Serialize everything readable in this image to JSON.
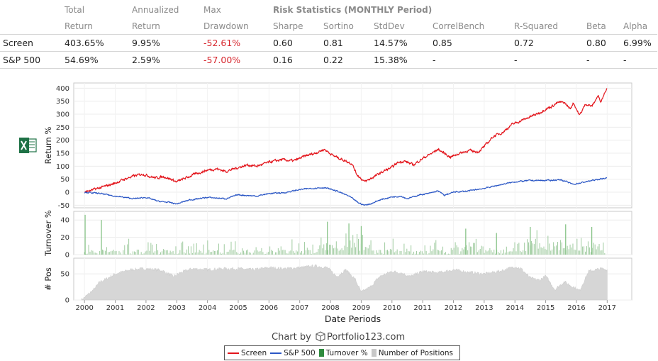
{
  "stats_table": {
    "header1": [
      "Total",
      "Annualized",
      "Max",
      "Risk Statistics (MONTHLY Period)"
    ],
    "header2": [
      "Return",
      "Return",
      "Drawdown",
      "Sharpe",
      "Sortino",
      "StdDev",
      "CorrelBench",
      "R-Squared",
      "Beta",
      "Alpha"
    ],
    "rows": [
      {
        "name": "Screen",
        "total": "403.65%",
        "annualized": "9.95%",
        "drawdown": "-52.61%",
        "sharpe": "0.60",
        "sortino": "0.81",
        "stddev": "14.57%",
        "correl": "0.85",
        "rsq": "0.72",
        "beta": "0.80",
        "alpha": "6.99%"
      },
      {
        "name": "S&P 500",
        "total": "54.69%",
        "annualized": "2.59%",
        "drawdown": "-57.00%",
        "sharpe": "0.16",
        "sortino": "0.22",
        "stddev": "15.38%",
        "correl": "-",
        "rsq": "-",
        "beta": "-",
        "alpha": "-"
      }
    ]
  },
  "chart_data": [
    {
      "type": "line",
      "ylabel": "Return %",
      "ylim": [
        -60,
        420
      ],
      "yticks": [
        400,
        350,
        300,
        250,
        200,
        150,
        100,
        50,
        0,
        -50
      ],
      "colors": {
        "Screen": "#e3141b",
        "S&P 500": "#2b57c5"
      },
      "series": [
        {
          "name": "Screen",
          "x": [
            2000.0,
            2000.3,
            2000.6,
            2001.0,
            2001.3,
            2001.6,
            2001.9,
            2002.3,
            2002.6,
            2002.9,
            2003.0,
            2003.3,
            2003.6,
            2004.0,
            2004.3,
            2004.6,
            2005.0,
            2005.3,
            2005.6,
            2006.0,
            2006.4,
            2006.8,
            2007.2,
            2007.5,
            2007.8,
            2008.1,
            2008.4,
            2008.7,
            2008.85,
            2009.1,
            2009.2,
            2009.5,
            2009.8,
            2010.0,
            2010.2,
            2010.4,
            2010.7,
            2011.0,
            2011.3,
            2011.5,
            2011.7,
            2011.9,
            2012.2,
            2012.5,
            2012.8,
            2013.0,
            2013.3,
            2013.6,
            2013.9,
            2014.2,
            2014.5,
            2014.8,
            2015.0,
            2015.2,
            2015.4,
            2015.6,
            2015.8,
            2015.9,
            2016.1,
            2016.3,
            2016.5,
            2016.7,
            2016.8,
            2017.0
          ],
          "y": [
            0,
            10,
            20,
            35,
            50,
            62,
            70,
            55,
            60,
            45,
            40,
            55,
            70,
            85,
            90,
            80,
            95,
            105,
            100,
            115,
            125,
            120,
            140,
            150,
            165,
            140,
            125,
            110,
            70,
            40,
            45,
            65,
            85,
            95,
            115,
            120,
            105,
            130,
            150,
            165,
            150,
            135,
            150,
            160,
            155,
            175,
            215,
            230,
            260,
            275,
            290,
            305,
            320,
            330,
            345,
            345,
            320,
            345,
            295,
            340,
            330,
            370,
            350,
            405
          ]
        },
        {
          "name": "S&P 500",
          "x": [
            2000.0,
            2000.5,
            2001.0,
            2001.6,
            2002.0,
            2002.4,
            2002.8,
            2003.0,
            2003.4,
            2004.0,
            2004.6,
            2005.0,
            2005.6,
            2006.0,
            2006.5,
            2007.0,
            2007.4,
            2007.8,
            2008.2,
            2008.6,
            2008.9,
            2009.1,
            2009.3,
            2009.6,
            2010.0,
            2010.3,
            2010.5,
            2010.9,
            2011.2,
            2011.5,
            2011.7,
            2012.0,
            2012.5,
            2013.0,
            2013.5,
            2014.0,
            2014.5,
            2015.0,
            2015.5,
            2015.9,
            2016.1,
            2016.5,
            2017.0
          ],
          "y": [
            0,
            -5,
            -15,
            -25,
            -20,
            -35,
            -40,
            -45,
            -30,
            -20,
            -25,
            -10,
            -15,
            -5,
            -2,
            10,
            15,
            18,
            5,
            -15,
            -40,
            -50,
            -45,
            -30,
            -18,
            -15,
            -25,
            -10,
            -5,
            5,
            -12,
            0,
            5,
            15,
            28,
            40,
            45,
            45,
            48,
            30,
            35,
            45,
            55
          ]
        }
      ],
      "x_domain": [
        1999.65,
        2017.8
      ]
    },
    {
      "type": "bar",
      "ylabel": "Turnover %",
      "ylim": [
        0,
        50
      ],
      "yticks": [
        40,
        20,
        0
      ],
      "color": "#9fcb9f",
      "series_name": "Turnover %",
      "note_spikes": {
        "x": [
          2000.02,
          2000.55,
          2007.9,
          2008.6,
          2009.0,
          2012.4,
          2013.4,
          2014.5,
          2015.65,
          2016.5
        ],
        "y": [
          46,
          40,
          38,
          36,
          33,
          30,
          25,
          32,
          35,
          32
        ]
      }
    },
    {
      "type": "area",
      "ylabel": "# Pos",
      "ylim": [
        0,
        80
      ],
      "yticks": [
        50,
        0
      ],
      "color": "#d6d6d6",
      "series_name": "Number of Positions",
      "x": [
        1999.9,
        2000.0,
        2000.3,
        2000.5,
        2000.7,
        2001.0,
        2001.5,
        2002.0,
        2002.5,
        2002.9,
        2003.1,
        2003.5,
        2004.0,
        2004.5,
        2005.0,
        2005.5,
        2006.0,
        2006.5,
        2007.0,
        2007.5,
        2007.9,
        2008.2,
        2008.5,
        2008.8,
        2009.0,
        2009.3,
        2009.6,
        2010.0,
        2010.3,
        2010.6,
        2011.0,
        2011.5,
        2012.0,
        2012.5,
        2013.0,
        2013.5,
        2014.0,
        2014.2,
        2014.5,
        2014.8,
        2015.0,
        2015.3,
        2015.6,
        2015.9,
        2016.1,
        2016.4,
        2016.8,
        2017.0
      ],
      "y": [
        0,
        5,
        20,
        35,
        40,
        50,
        58,
        60,
        57,
        45,
        52,
        60,
        58,
        60,
        60,
        58,
        62,
        60,
        62,
        65,
        62,
        45,
        58,
        40,
        15,
        25,
        45,
        55,
        52,
        45,
        55,
        52,
        58,
        53,
        50,
        55,
        64,
        60,
        42,
        38,
        46,
        20,
        35,
        25,
        18,
        55,
        60,
        58
      ]
    }
  ],
  "x_axis": {
    "label": "Date Periods",
    "ticks": [
      "2000",
      "2001",
      "2002",
      "2003",
      "2004",
      "2005",
      "2006",
      "2007",
      "2008",
      "2009",
      "2010",
      "2011",
      "2012",
      "2013",
      "2014",
      "2015",
      "2016",
      "2017"
    ]
  },
  "credit": {
    "prefix": "Chart by",
    "brand": "Portfolio123.com"
  },
  "legend": [
    {
      "label": "Screen",
      "kind": "line",
      "color": "#e3141b"
    },
    {
      "label": "S&P 500",
      "kind": "line",
      "color": "#2b57c5"
    },
    {
      "label": "Turnover %",
      "kind": "box",
      "color": "#2e8b3e"
    },
    {
      "label": "Number of Positions",
      "kind": "box",
      "color": "#c8c8c8"
    }
  ]
}
